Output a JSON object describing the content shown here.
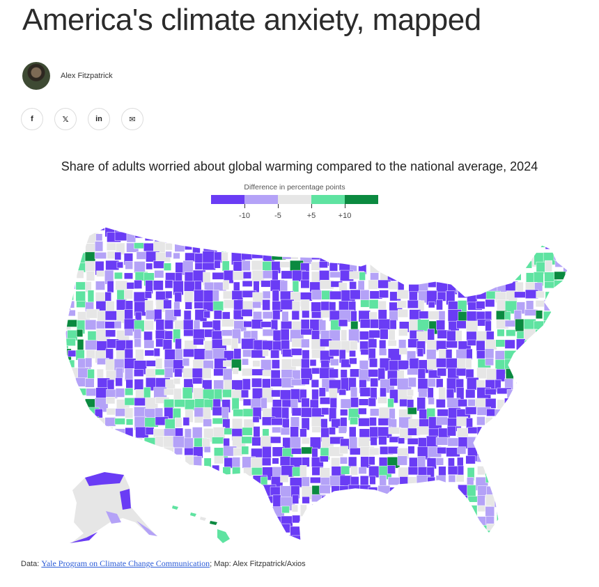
{
  "article": {
    "headline": "America's climate anxiety, mapped",
    "author": "Alex Fitzpatrick"
  },
  "share": [
    {
      "icon": "facebook-icon",
      "glyph": "f"
    },
    {
      "icon": "x-icon",
      "glyph": "𝕏"
    },
    {
      "icon": "linkedin-icon",
      "glyph": "in"
    },
    {
      "icon": "email-icon",
      "glyph": "✉"
    }
  ],
  "chart_data": {
    "type": "choropleth",
    "title": "Share of adults worried about global warming compared to the national average, 2024",
    "legend": {
      "title": "Difference in percentage points",
      "bins": [
        {
          "range": "below -10",
          "color": "#6a3cf5"
        },
        {
          "range": "-10 to -5",
          "color": "#b4a2f7"
        },
        {
          "range": "-5 to +5",
          "color": "#e6e6e6"
        },
        {
          "range": "+5 to +10",
          "color": "#5fe3a1"
        },
        {
          "range": "above +10",
          "color": "#0b8a40"
        }
      ],
      "tick_labels": [
        "-10",
        "-5",
        "+5",
        "+10"
      ]
    }
  },
  "source": {
    "prefix": "Data: ",
    "link_text": "Yale Program on Climate Change Communication",
    "suffix": "; Map: Alex Fitzpatrick/Axios"
  }
}
